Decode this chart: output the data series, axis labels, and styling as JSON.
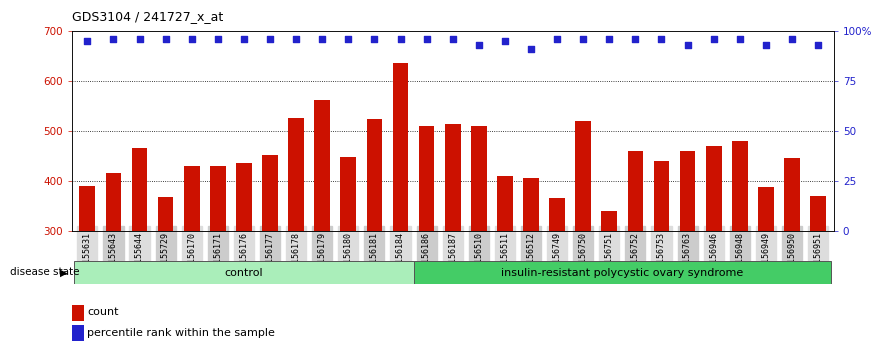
{
  "title": "GDS3104 / 241727_x_at",
  "samples": [
    "GSM155631",
    "GSM155643",
    "GSM155644",
    "GSM155729",
    "GSM156170",
    "GSM156171",
    "GSM156176",
    "GSM156177",
    "GSM156178",
    "GSM156179",
    "GSM156180",
    "GSM156181",
    "GSM156184",
    "GSM156186",
    "GSM156187",
    "GSM156510",
    "GSM156511",
    "GSM156512",
    "GSM156749",
    "GSM156750",
    "GSM156751",
    "GSM156752",
    "GSM156753",
    "GSM156763",
    "GSM156946",
    "GSM156948",
    "GSM156949",
    "GSM156950",
    "GSM156951"
  ],
  "bar_values": [
    390,
    415,
    465,
    368,
    430,
    430,
    435,
    452,
    525,
    562,
    448,
    524,
    635,
    510,
    513,
    510,
    410,
    405,
    365,
    520,
    340,
    460,
    440,
    460,
    470,
    480,
    388,
    445,
    370
  ],
  "percentile_values": [
    95,
    96,
    96,
    96,
    96,
    96,
    96,
    96,
    96,
    96,
    96,
    96,
    96,
    96,
    96,
    93,
    95,
    91,
    96,
    96,
    96,
    96,
    96,
    93,
    96,
    96,
    93,
    96,
    93
  ],
  "group_labels": [
    "control",
    "insulin-resistant polycystic ovary syndrome"
  ],
  "group_sizes": [
    13,
    16
  ],
  "bar_color": "#CC1100",
  "dot_color": "#2222CC",
  "ymin": 300,
  "ymax": 700,
  "yticks_left": [
    300,
    400,
    500,
    600,
    700
  ],
  "yticks_right": [
    0,
    25,
    50,
    75,
    100
  ],
  "ytick_right_labels": [
    "0",
    "25",
    "50",
    "75",
    "100%"
  ],
  "grid_values": [
    400,
    500,
    600
  ],
  "legend_count_label": "count",
  "legend_pct_label": "percentile rank within the sample",
  "disease_state_label": "disease state",
  "group_color_1": "#AAEEBA",
  "group_color_2": "#44CC66"
}
